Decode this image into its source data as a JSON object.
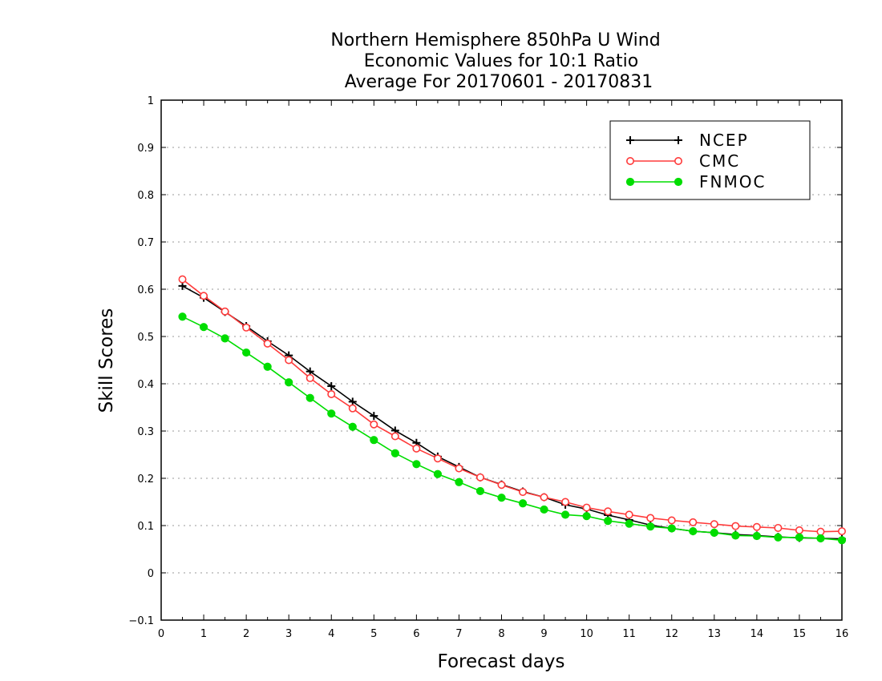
{
  "chart_data": {
    "type": "line",
    "title": [
      "Northern Hemisphere 850hPa U Wind",
      "Economic Values for 10:1 Ratio",
      "Average For 20170601 - 20170831"
    ],
    "xlabel": "Forecast days",
    "ylabel": "Skill Scores",
    "xlim": [
      0,
      16
    ],
    "ylim": [
      -0.1,
      1
    ],
    "xticks": [
      0,
      1,
      2,
      3,
      4,
      5,
      6,
      7,
      8,
      9,
      10,
      11,
      12,
      13,
      14,
      15,
      16
    ],
    "yticks": [
      -0.1,
      0,
      0.1,
      0.2,
      0.3,
      0.4,
      0.5,
      0.6,
      0.7,
      0.8,
      0.9,
      1
    ],
    "ytick_labels": [
      "−0.1",
      "0",
      "0.1",
      "0.2",
      "0.3",
      "0.4",
      "0.5",
      "0.6",
      "0.7",
      "0.8",
      "0.9",
      "1"
    ],
    "grid": true,
    "legend_position": "top-right",
    "x": [
      0.5,
      1,
      1.5,
      2,
      2.5,
      3,
      3.5,
      4,
      4.5,
      5,
      5.5,
      6,
      6.5,
      7,
      7.5,
      8,
      8.5,
      9,
      9.5,
      10,
      10.5,
      11,
      11.5,
      12,
      12.5,
      13,
      13.5,
      14,
      14.5,
      15,
      15.5,
      16
    ],
    "series": [
      {
        "name": "NCEP",
        "color": "#000000",
        "marker": "plus",
        "values": [
          0.607,
          0.582,
          0.552,
          0.522,
          0.49,
          0.46,
          0.426,
          0.395,
          0.362,
          0.332,
          0.301,
          0.275,
          0.246,
          0.224,
          0.202,
          0.187,
          0.172,
          0.16,
          0.144,
          0.135,
          0.122,
          0.112,
          0.101,
          0.094,
          0.088,
          0.085,
          0.081,
          0.079,
          0.076,
          0.074,
          0.073,
          0.072
        ]
      },
      {
        "name": "CMC",
        "color": "#ff3b3b",
        "marker": "open-circle",
        "values": [
          0.621,
          0.586,
          0.553,
          0.519,
          0.485,
          0.45,
          0.412,
          0.378,
          0.348,
          0.314,
          0.289,
          0.263,
          0.242,
          0.221,
          0.202,
          0.186,
          0.171,
          0.16,
          0.15,
          0.138,
          0.13,
          0.123,
          0.116,
          0.111,
          0.107,
          0.103,
          0.099,
          0.097,
          0.095,
          0.09,
          0.087,
          0.088
        ]
      },
      {
        "name": "FNMOC",
        "color": "#00dd00",
        "marker": "filled-circle",
        "values": [
          0.542,
          0.52,
          0.496,
          0.466,
          0.436,
          0.403,
          0.37,
          0.337,
          0.309,
          0.281,
          0.253,
          0.23,
          0.209,
          0.192,
          0.173,
          0.159,
          0.147,
          0.134,
          0.123,
          0.12,
          0.11,
          0.104,
          0.098,
          0.094,
          0.088,
          0.085,
          0.079,
          0.078,
          0.075,
          0.075,
          0.073,
          0.069
        ]
      }
    ]
  }
}
